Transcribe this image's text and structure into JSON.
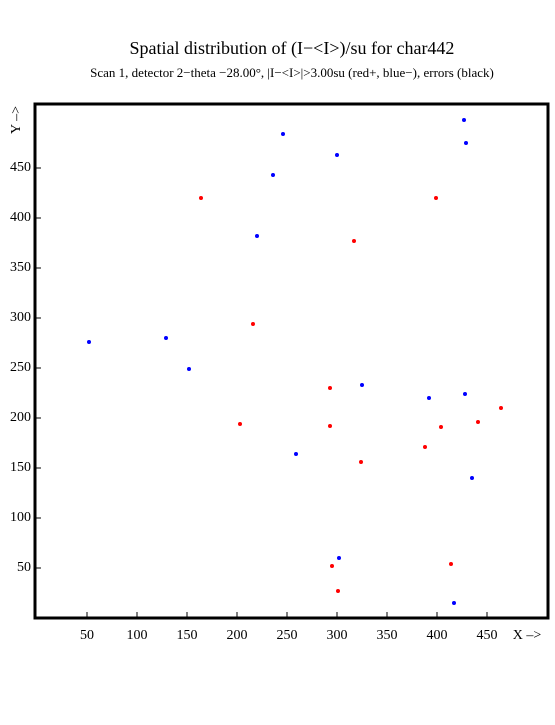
{
  "chart_data": {
    "type": "scatter",
    "title": "Spatial distribution of (I−<I>)/su for char442",
    "subtitle": "Scan  1, detector 2−theta −28.00°, |I−<I>|>3.00su (red+, blue−), errors (black)",
    "x_label": "X –>",
    "y_label": "Y –>",
    "xlim": [
      -2,
      511
    ],
    "ylim": [
      0,
      514
    ],
    "xticks": [
      50,
      100,
      150,
      200,
      250,
      300,
      350,
      400,
      450
    ],
    "yticks": [
      50,
      100,
      150,
      200,
      250,
      300,
      350,
      400,
      450
    ],
    "series": [
      {
        "color": "#0000ff",
        "x": [
          246,
          427,
          429,
          300,
          236,
          220,
          129,
          52,
          152,
          325,
          392,
          428,
          259,
          435,
          302,
          417
        ],
        "values": [
          484,
          498,
          475,
          463,
          443,
          382,
          280,
          276,
          249,
          233,
          220,
          224,
          164,
          140,
          60,
          15
        ]
      },
      {
        "color": "#ff0000",
        "x": [
          164,
          399,
          317,
          216,
          293,
          464,
          203,
          293,
          404,
          441,
          388,
          324,
          295,
          414,
          301
        ],
        "values": [
          420,
          420,
          377,
          294,
          230,
          210,
          194,
          192,
          191,
          196,
          171,
          156,
          52,
          54,
          27
        ]
      }
    ]
  }
}
